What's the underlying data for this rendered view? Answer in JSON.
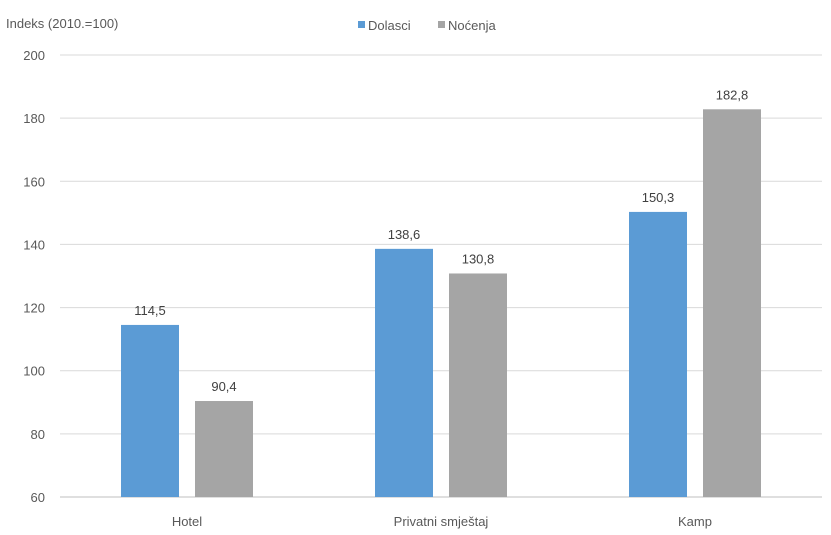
{
  "chart_data": {
    "type": "bar",
    "ylabel": "Indeks (2010.=100)",
    "categories": [
      "Hotel",
      "Privatni smještaj",
      "Kamp"
    ],
    "series": [
      {
        "name": "Dolasci",
        "color": "#5b9bd5",
        "values": [
          114.5,
          138.6,
          150.3
        ],
        "labels": [
          "114,5",
          "138,6",
          "150,3"
        ]
      },
      {
        "name": "Noćenja",
        "color": "#a5a5a5",
        "values": [
          90.4,
          130.8,
          182.8
        ],
        "labels": [
          "90,4",
          "130,8",
          "182,8"
        ]
      }
    ],
    "ylim": [
      60,
      200
    ],
    "yticks": [
      "60",
      "80",
      "100",
      "120",
      "140",
      "160",
      "180",
      "200"
    ],
    "ytick_values": [
      60,
      80,
      100,
      120,
      140,
      160,
      180,
      200
    ],
    "grid": true,
    "legend_position": "top"
  }
}
